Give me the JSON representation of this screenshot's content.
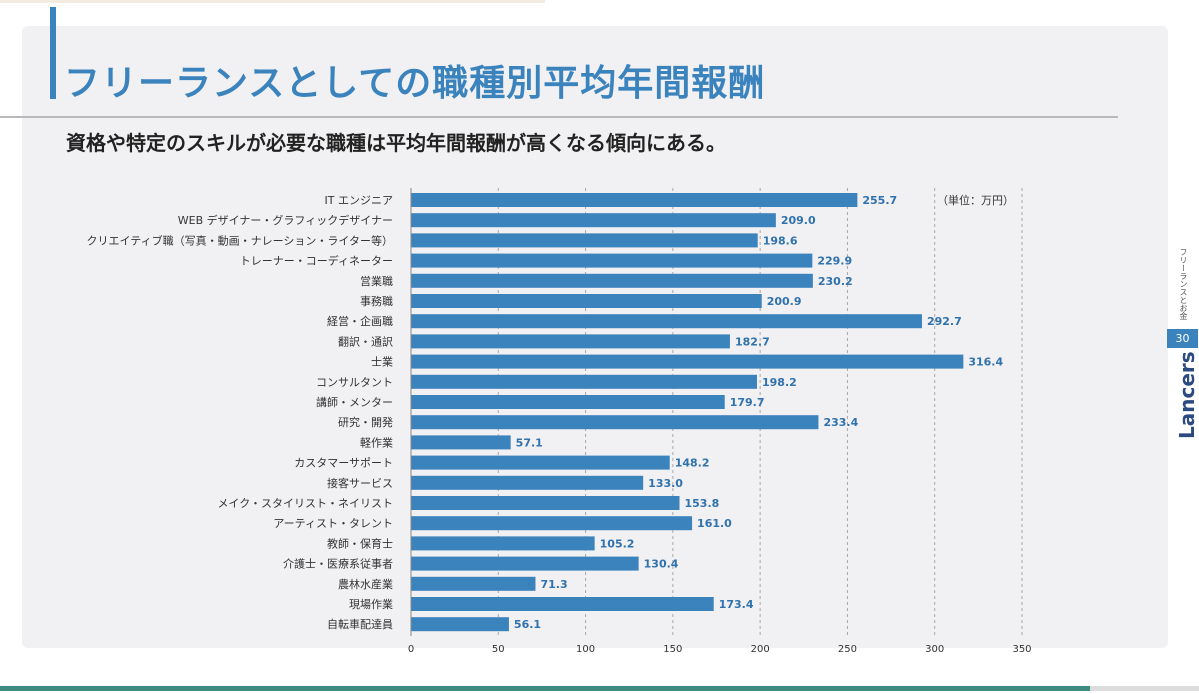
{
  "header": {
    "title": "フリーランスとしての職種別平均年間報酬",
    "subtitle": "資格や特定のスキルが必要な職種は平均年間報酬が高くなる傾向にある。"
  },
  "sidebar": {
    "section_label": "フリーランスとお金",
    "page_number": "30",
    "brand": "Lancers"
  },
  "colors": {
    "title": "#3b83bd",
    "bar": "#3b83bd",
    "value_text": "#2f72ad",
    "footer": "#3c8a80"
  },
  "chart_data": {
    "type": "bar",
    "orientation": "horizontal",
    "unit": "（単位：万円）",
    "xlim": [
      0,
      350
    ],
    "xticks": [
      0,
      50,
      100,
      150,
      200,
      250,
      300,
      350
    ],
    "grid": "vertical-dashed",
    "categories": [
      "IT エンジニア",
      "WEB デザイナー・グラフィックデザイナー",
      "クリエイティブ職（写真・動画・ナレーション・ライター等）",
      "トレーナー・コーディネーター",
      "営業職",
      "事務職",
      "経営・企画職",
      "翻訳・通訳",
      "士業",
      "コンサルタント",
      "講師・メンター",
      "研究・開発",
      "軽作業",
      "カスタマーサポート",
      "接客サービス",
      "メイク・スタイリスト・ネイリスト",
      "アーティスト・タレント",
      "教師・保育士",
      "介護士・医療系従事者",
      "農林水産業",
      "現場作業",
      "自転車配達員"
    ],
    "values": [
      255.7,
      209.0,
      198.6,
      229.9,
      230.2,
      200.9,
      292.7,
      182.7,
      316.4,
      198.2,
      179.7,
      233.4,
      57.1,
      148.2,
      133.0,
      153.8,
      161.0,
      105.2,
      130.4,
      71.3,
      173.4,
      56.1
    ],
    "value_labels": [
      "255.7",
      "209.0",
      "198.6",
      "229.9",
      "230.2",
      "200.9",
      "292.7",
      "182.7",
      "316.4",
      "198.2",
      "179.7",
      "233.4",
      "57.1",
      "148.2",
      "133.0",
      "153.8",
      "161.0",
      "105.2",
      "130.4",
      "71.3",
      "173.4",
      "56.1"
    ]
  }
}
